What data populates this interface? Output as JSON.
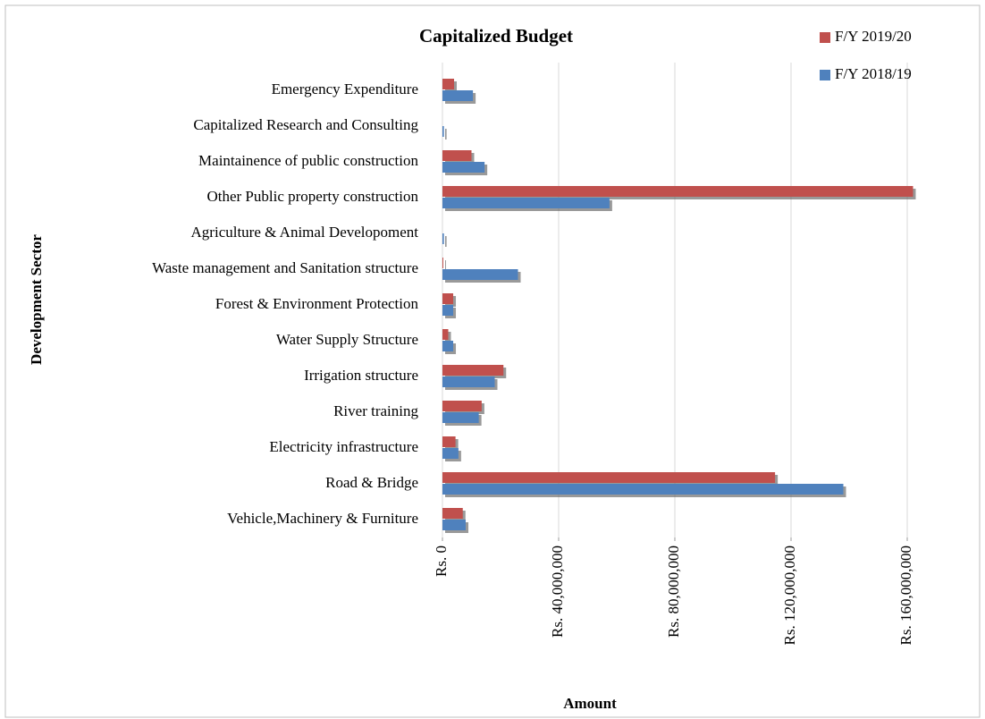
{
  "chart_data": {
    "type": "barh",
    "title": "Capitalized Budget",
    "x_label": "Amount",
    "y_label": "Development Sector",
    "categories": [
      "Emergency Expenditure",
      "Capitalized Research and Consulting",
      "Maintainence of public construction",
      "Other Public property construction",
      "Agriculture & Animal Developoment",
      "Waste management and Sanitation structure",
      "Forest &  Environment Protection",
      "Water Supply Structure",
      "Irrigation structure",
      "River training",
      "Electricity infrastructure",
      "Road & Bridge",
      "Vehicle,Machinery & Furniture"
    ],
    "series": [
      {
        "name": "F/Y 2019/20",
        "color": "#c0504d",
        "values": [
          4000000,
          0,
          10000000,
          162000000,
          0,
          300000,
          3700000,
          2000000,
          21000000,
          13500000,
          4500000,
          114500000,
          7000000
        ]
      },
      {
        "name": "F/Y 2018/19",
        "color": "#4f81bd",
        "values": [
          10500000,
          500000,
          14500000,
          57500000,
          500000,
          26000000,
          3700000,
          3700000,
          18000000,
          12500000,
          5500000,
          138000000,
          8000000
        ]
      }
    ],
    "xlim": [
      0,
      160000000
    ],
    "xticks": [
      {
        "value": 0,
        "label": "Rs. 0"
      },
      {
        "value": 40000000,
        "label": "Rs. 40,000,000"
      },
      {
        "value": 80000000,
        "label": "Rs. 80,000,000"
      },
      {
        "value": 120000000,
        "label": "Rs. 120,000,000"
      },
      {
        "value": 160000000,
        "label": "Rs. 160,000,000"
      }
    ],
    "grid": true,
    "legend": "top-right"
  }
}
